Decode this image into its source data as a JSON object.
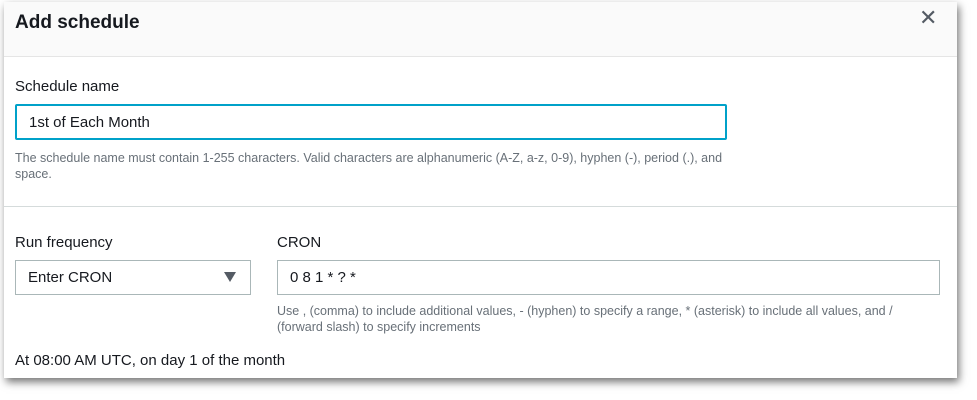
{
  "dialog": {
    "title": "Add schedule",
    "close_icon": "close-icon"
  },
  "schedule_name": {
    "label": "Schedule name",
    "value": "1st of Each Month",
    "help": "The schedule name must contain 1-255 characters. Valid characters are alphanumeric (A-Z, a-z, 0-9), hyphen (-), period (.), and space."
  },
  "run_frequency": {
    "label": "Run frequency",
    "selected": "Enter CRON"
  },
  "cron": {
    "label": "CRON",
    "value": "0 8 1 * ? *",
    "help": "Use , (comma) to include additional values, - (hyphen) to specify a range, * (asterisk) to include all values, and / (forward slash) to specify increments"
  },
  "summary": "At 08:00 AM UTC, on day 1 of the month",
  "colors": {
    "focus_border": "#00a1c9"
  }
}
